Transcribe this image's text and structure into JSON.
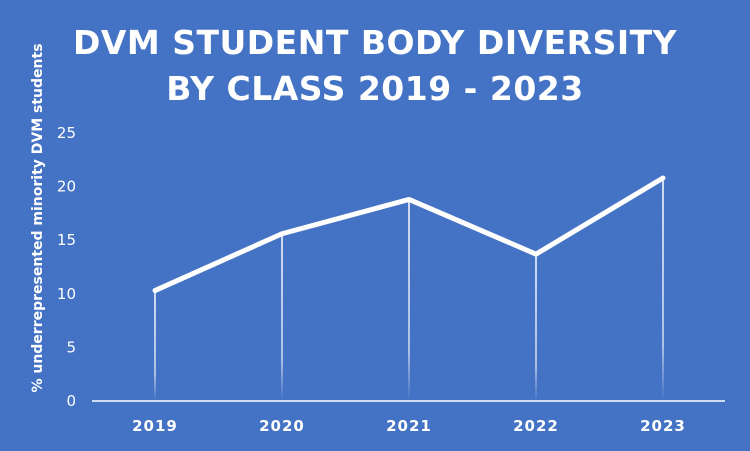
{
  "chart_data": {
    "type": "line",
    "title_lines": [
      "DVM STUDENT BODY DIVERSITY",
      "BY CLASS 2019 - 2023"
    ],
    "xlabel": "",
    "ylabel": "% underrepresented minority DVM students",
    "categories": [
      "2019",
      "2020",
      "2021",
      "2022",
      "2023"
    ],
    "series": [
      {
        "values": [
          10.3,
          15.6,
          18.8,
          13.7,
          20.8
        ]
      }
    ],
    "ylim": [
      0,
      25
    ],
    "yticks": [
      "0",
      "5",
      "10",
      "15",
      "20",
      "25"
    ],
    "grid": false,
    "drop_lines": true,
    "legend": "none",
    "colors": {
      "background": "#4472c4",
      "line": "#ffffff",
      "text": "#ffffff"
    }
  }
}
